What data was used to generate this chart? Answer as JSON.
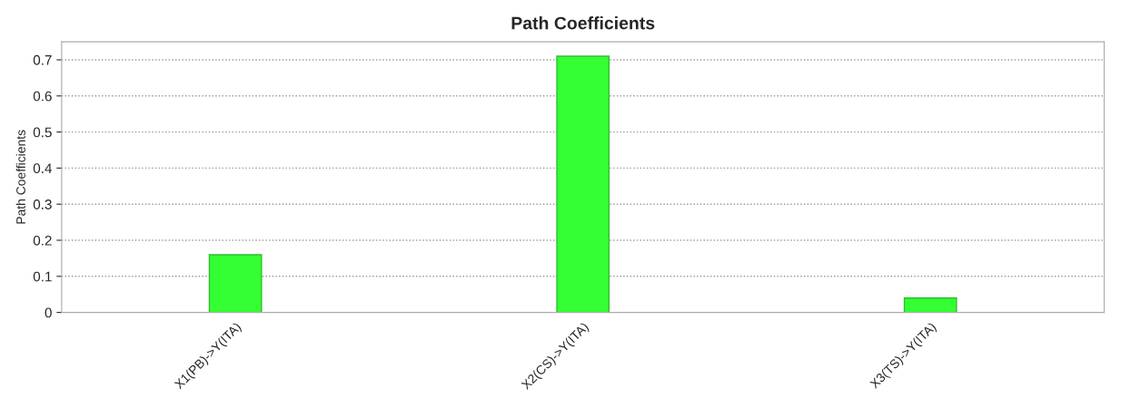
{
  "chart_data": {
    "type": "bar",
    "title": "Path Coefficients",
    "ylabel": "Path Coefficients",
    "categories": [
      "X1(PB)->Y(ITA)",
      "X2(CS)->Y(ITA)",
      "X3(TS)->Y(ITA)"
    ],
    "values": [
      0.16,
      0.71,
      0.04
    ],
    "color": "#33ff33",
    "ylim": [
      0,
      0.75
    ],
    "yticks": [
      0,
      0.1,
      0.2,
      0.3,
      0.4,
      0.5,
      0.6,
      0.7
    ],
    "grid": "y"
  }
}
